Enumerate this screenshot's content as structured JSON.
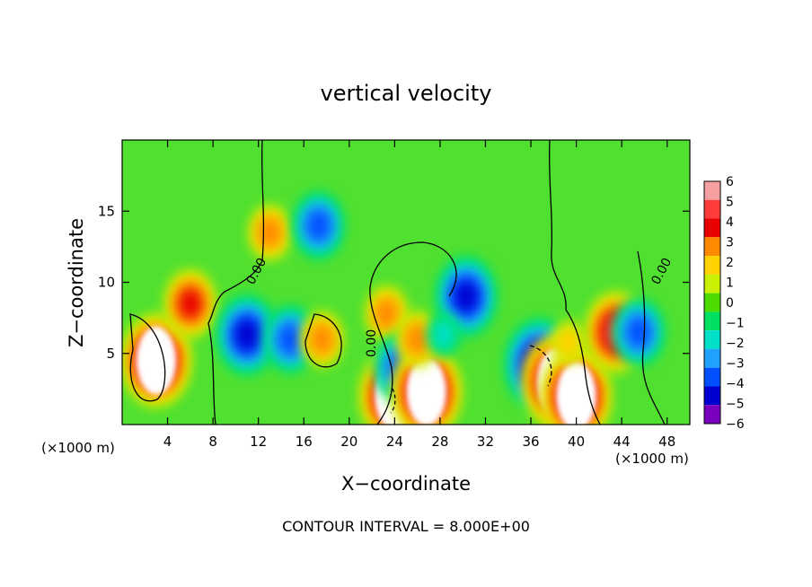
{
  "chart_data": {
    "type": "heatmap",
    "title": "vertical velocity",
    "xlabel": "X−coordinate",
    "ylabel": "Z−coordinate",
    "x_unit_left": "(×1000 m)",
    "x_unit_right": "(×1000 m)",
    "footer": "CONTOUR INTERVAL = 8.000E+00",
    "xlim": [
      0,
      50
    ],
    "ylim": [
      0,
      20
    ],
    "xticks": [
      4,
      8,
      12,
      16,
      20,
      24,
      28,
      32,
      36,
      40,
      44,
      48
    ],
    "yticks": [
      5,
      10,
      15
    ],
    "contour_label": "0.00",
    "colorbar": {
      "levels": [
        6,
        5,
        4,
        3,
        2,
        1,
        0,
        "−1",
        "−2",
        "−3",
        "−4",
        "−5",
        "−6"
      ],
      "colors": [
        "#f4a0a0",
        "#ff3b3b",
        "#e80000",
        "#ff8a00",
        "#ffd200",
        "#c8f000",
        "#4cdc00",
        "#00e060",
        "#00e0c8",
        "#20a0ff",
        "#0050ff",
        "#0000d0",
        "#7a00c0"
      ]
    },
    "features": [
      {
        "x": 3,
        "z": 4.5,
        "w": 6
      },
      {
        "x": 6,
        "z": 8.5,
        "w": 4
      },
      {
        "x": 13,
        "z": 13.5,
        "w": 3
      },
      {
        "x": 11,
        "z": 6.3,
        "w": -4.5
      },
      {
        "x": 14.8,
        "z": 6,
        "w": -4
      },
      {
        "x": 17.3,
        "z": 14,
        "w": -3.5
      },
      {
        "x": 17.6,
        "z": 6,
        "w": 3
      },
      {
        "x": 23.3,
        "z": 7.8,
        "w": 3
      },
      {
        "x": 24,
        "z": 2,
        "w": 6
      },
      {
        "x": 24.5,
        "z": 4,
        "w": -4
      },
      {
        "x": 26.8,
        "z": 2.3,
        "w": 6
      },
      {
        "x": 26,
        "z": 6,
        "w": 3
      },
      {
        "x": 30.3,
        "z": 9,
        "w": -4.5
      },
      {
        "x": 28.3,
        "z": 6.3,
        "w": -2
      },
      {
        "x": 36.8,
        "z": 4.2,
        "w": -5.5
      },
      {
        "x": 38.3,
        "z": 3,
        "w": 6
      },
      {
        "x": 40,
        "z": 2,
        "w": 6
      },
      {
        "x": 39.3,
        "z": 5.8,
        "w": 2
      },
      {
        "x": 43.5,
        "z": 6.5,
        "w": 4.5
      },
      {
        "x": 45.5,
        "z": 6.5,
        "w": -4
      }
    ]
  }
}
